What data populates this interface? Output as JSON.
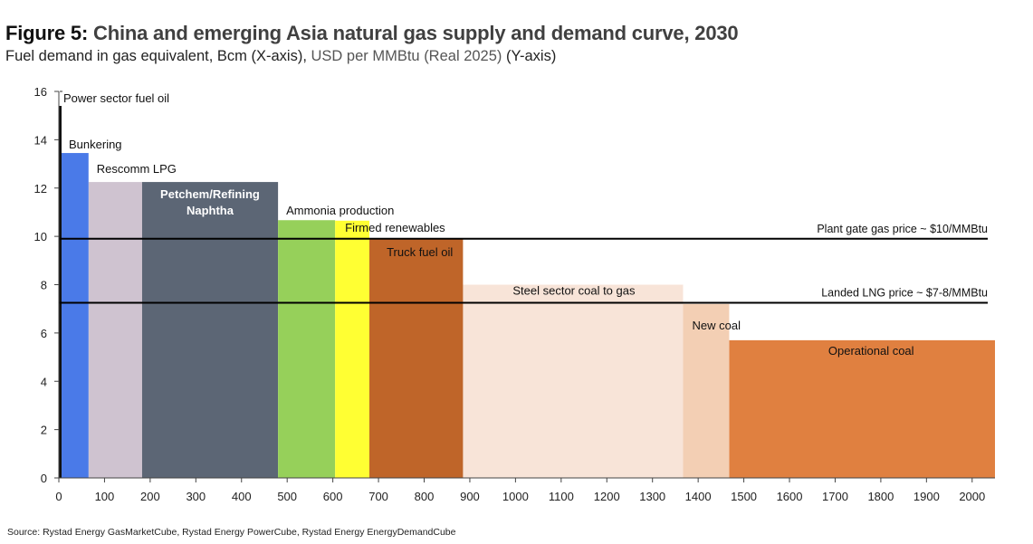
{
  "header": {
    "figure_label": "Figure 5:",
    "title": "China and emerging Asia natural gas supply and demand curve, 2030",
    "subtitle_x": "Fuel demand in gas equivalent, Bcm (X-axis), ",
    "subtitle_y": "USD per MMBtu (Real 2025)",
    "subtitle_y_suffix": " (Y-axis)"
  },
  "footer": {
    "source": "Source: Rystad Energy GasMarketCube, Rystad Energy PowerCube, Rystad Energy EnergyDemandCube"
  },
  "chart_data": {
    "type": "bar",
    "subtype": "variable-width step (supply/demand curve)",
    "title": "China and emerging Asia natural gas supply and demand curve, 2030",
    "xlabel": "Fuel demand in gas equivalent, Bcm",
    "ylabel": "USD per MMBtu (Real 2025)",
    "xlim": [
      0,
      2050
    ],
    "ylim": [
      0,
      16
    ],
    "x_ticks": [
      0,
      100,
      200,
      300,
      400,
      500,
      600,
      700,
      800,
      900,
      1000,
      1100,
      1200,
      1300,
      1400,
      1500,
      1600,
      1700,
      1800,
      1900,
      2000
    ],
    "y_ticks": [
      0,
      2,
      4,
      6,
      8,
      10,
      12,
      14,
      16
    ],
    "grid": false,
    "segments": [
      {
        "name": "Power sector fuel oil",
        "x_start": 0,
        "x_end": 5,
        "value": 15.4,
        "color": "#111111",
        "label_color": "#111111"
      },
      {
        "name": "Bunkering",
        "x_start": 0,
        "x_end": 65,
        "value": 13.45,
        "color": "#4a7ae8",
        "label_color": "#111111"
      },
      {
        "name": "Rescomm LPG",
        "x_start": 65,
        "x_end": 182,
        "value": 12.25,
        "color": "#cfc3d0",
        "label_color": "#111111"
      },
      {
        "name": "Petchem/Refining Naphtha",
        "label_lines": [
          "Petchem/Refining",
          "Naphtha"
        ],
        "x_start": 182,
        "x_end": 480,
        "value": 12.25,
        "color": "#5c6675",
        "label_color": "#ffffff"
      },
      {
        "name": "Ammonia production",
        "x_start": 480,
        "x_end": 605,
        "value": 10.67,
        "color": "#96d05a",
        "label_color": "#111111"
      },
      {
        "name": "Firmed renewables",
        "x_start": 605,
        "x_end": 680,
        "value": 10.65,
        "color": "#ffff33",
        "label_color": "#111111"
      },
      {
        "name": "Truck fuel oil",
        "x_start": 680,
        "x_end": 885,
        "value": 9.9,
        "color": "#bf6529",
        "label_color": "#111111"
      },
      {
        "name": "Steel sector coal to gas",
        "x_start": 885,
        "x_end": 1367,
        "value": 8.0,
        "color": "#f8e4d8",
        "label_color": "#111111"
      },
      {
        "name": "New coal",
        "x_start": 1367,
        "x_end": 1468,
        "value": 7.2,
        "color": "#f3cfb4",
        "label_color": "#111111"
      },
      {
        "name": "Operational coal",
        "x_start": 1468,
        "x_end": 2050,
        "value": 5.7,
        "color": "#e08040",
        "label_color": "#111111"
      }
    ],
    "reference_lines": [
      {
        "label": "Plant gate gas price ~ $10/MMBtu",
        "value": 9.9
      },
      {
        "label": "Landed LNG price ~ $7-8/MMBtu",
        "value": 7.25
      }
    ]
  }
}
